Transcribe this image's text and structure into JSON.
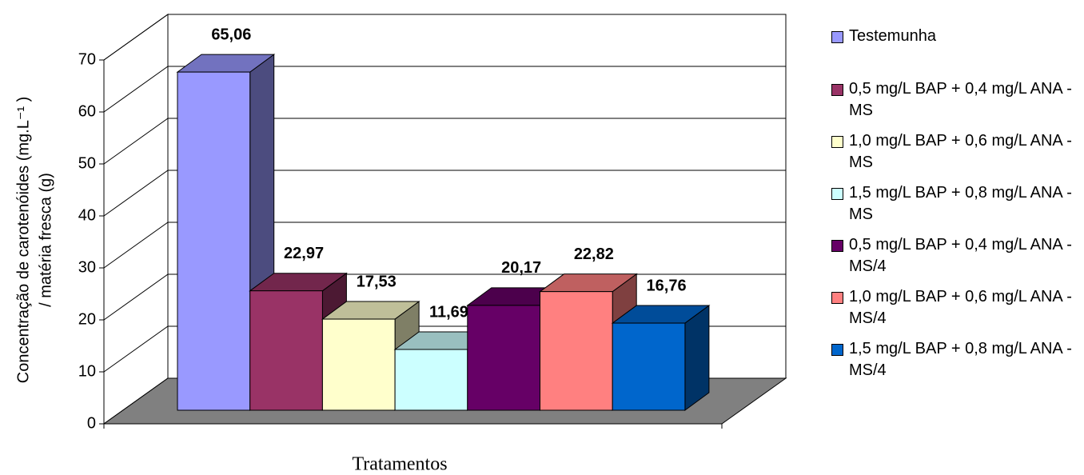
{
  "chart_data": {
    "type": "bar3d",
    "y_label": [
      "Concentração de carotenóides (mg.L⁻¹ )",
      "/ matéria fresca (g)"
    ],
    "x_label": "Tratamentos",
    "ylim": [
      0,
      70
    ],
    "yticks": [
      0,
      10,
      20,
      30,
      40,
      50,
      60,
      70
    ],
    "grid": true,
    "legend": "right",
    "series": [
      {
        "name": "Testemunha",
        "color": "#9999ff",
        "values": [
          65.06
        ],
        "value_labels": [
          "65,06"
        ]
      },
      {
        "name": "0,5 mg/L BAP + 0,4 mg/L ANA  - MS",
        "color": "#993366",
        "values": [
          22.97
        ],
        "value_labels": [
          "22,97"
        ]
      },
      {
        "name": "1,0 mg/L BAP + 0,6 mg/L ANA - MS",
        "color": "#ffffcc",
        "values": [
          17.53
        ],
        "value_labels": [
          "17,53"
        ]
      },
      {
        "name": "1,5 mg/L BAP + 0,8 mg/L ANA  - MS",
        "color": "#ccffff",
        "values": [
          11.69
        ],
        "value_labels": [
          "11,69"
        ]
      },
      {
        "name": "0,5 mg/L BAP + 0,4 mg/L ANA - MS/4",
        "color": "#660066",
        "values": [
          20.17
        ],
        "value_labels": [
          "20,17"
        ]
      },
      {
        "name": "1,0 mg/L BAP + 0,6 mg/L ANA - MS/4",
        "color": "#ff8080",
        "values": [
          22.82
        ],
        "value_labels": [
          "22,82"
        ]
      },
      {
        "name": "1,5 mg/L BAP + 0,8 mg/L ANA  - MS/4",
        "color": "#0066cc",
        "values": [
          16.76
        ],
        "value_labels": [
          "16,76"
        ]
      }
    ]
  }
}
